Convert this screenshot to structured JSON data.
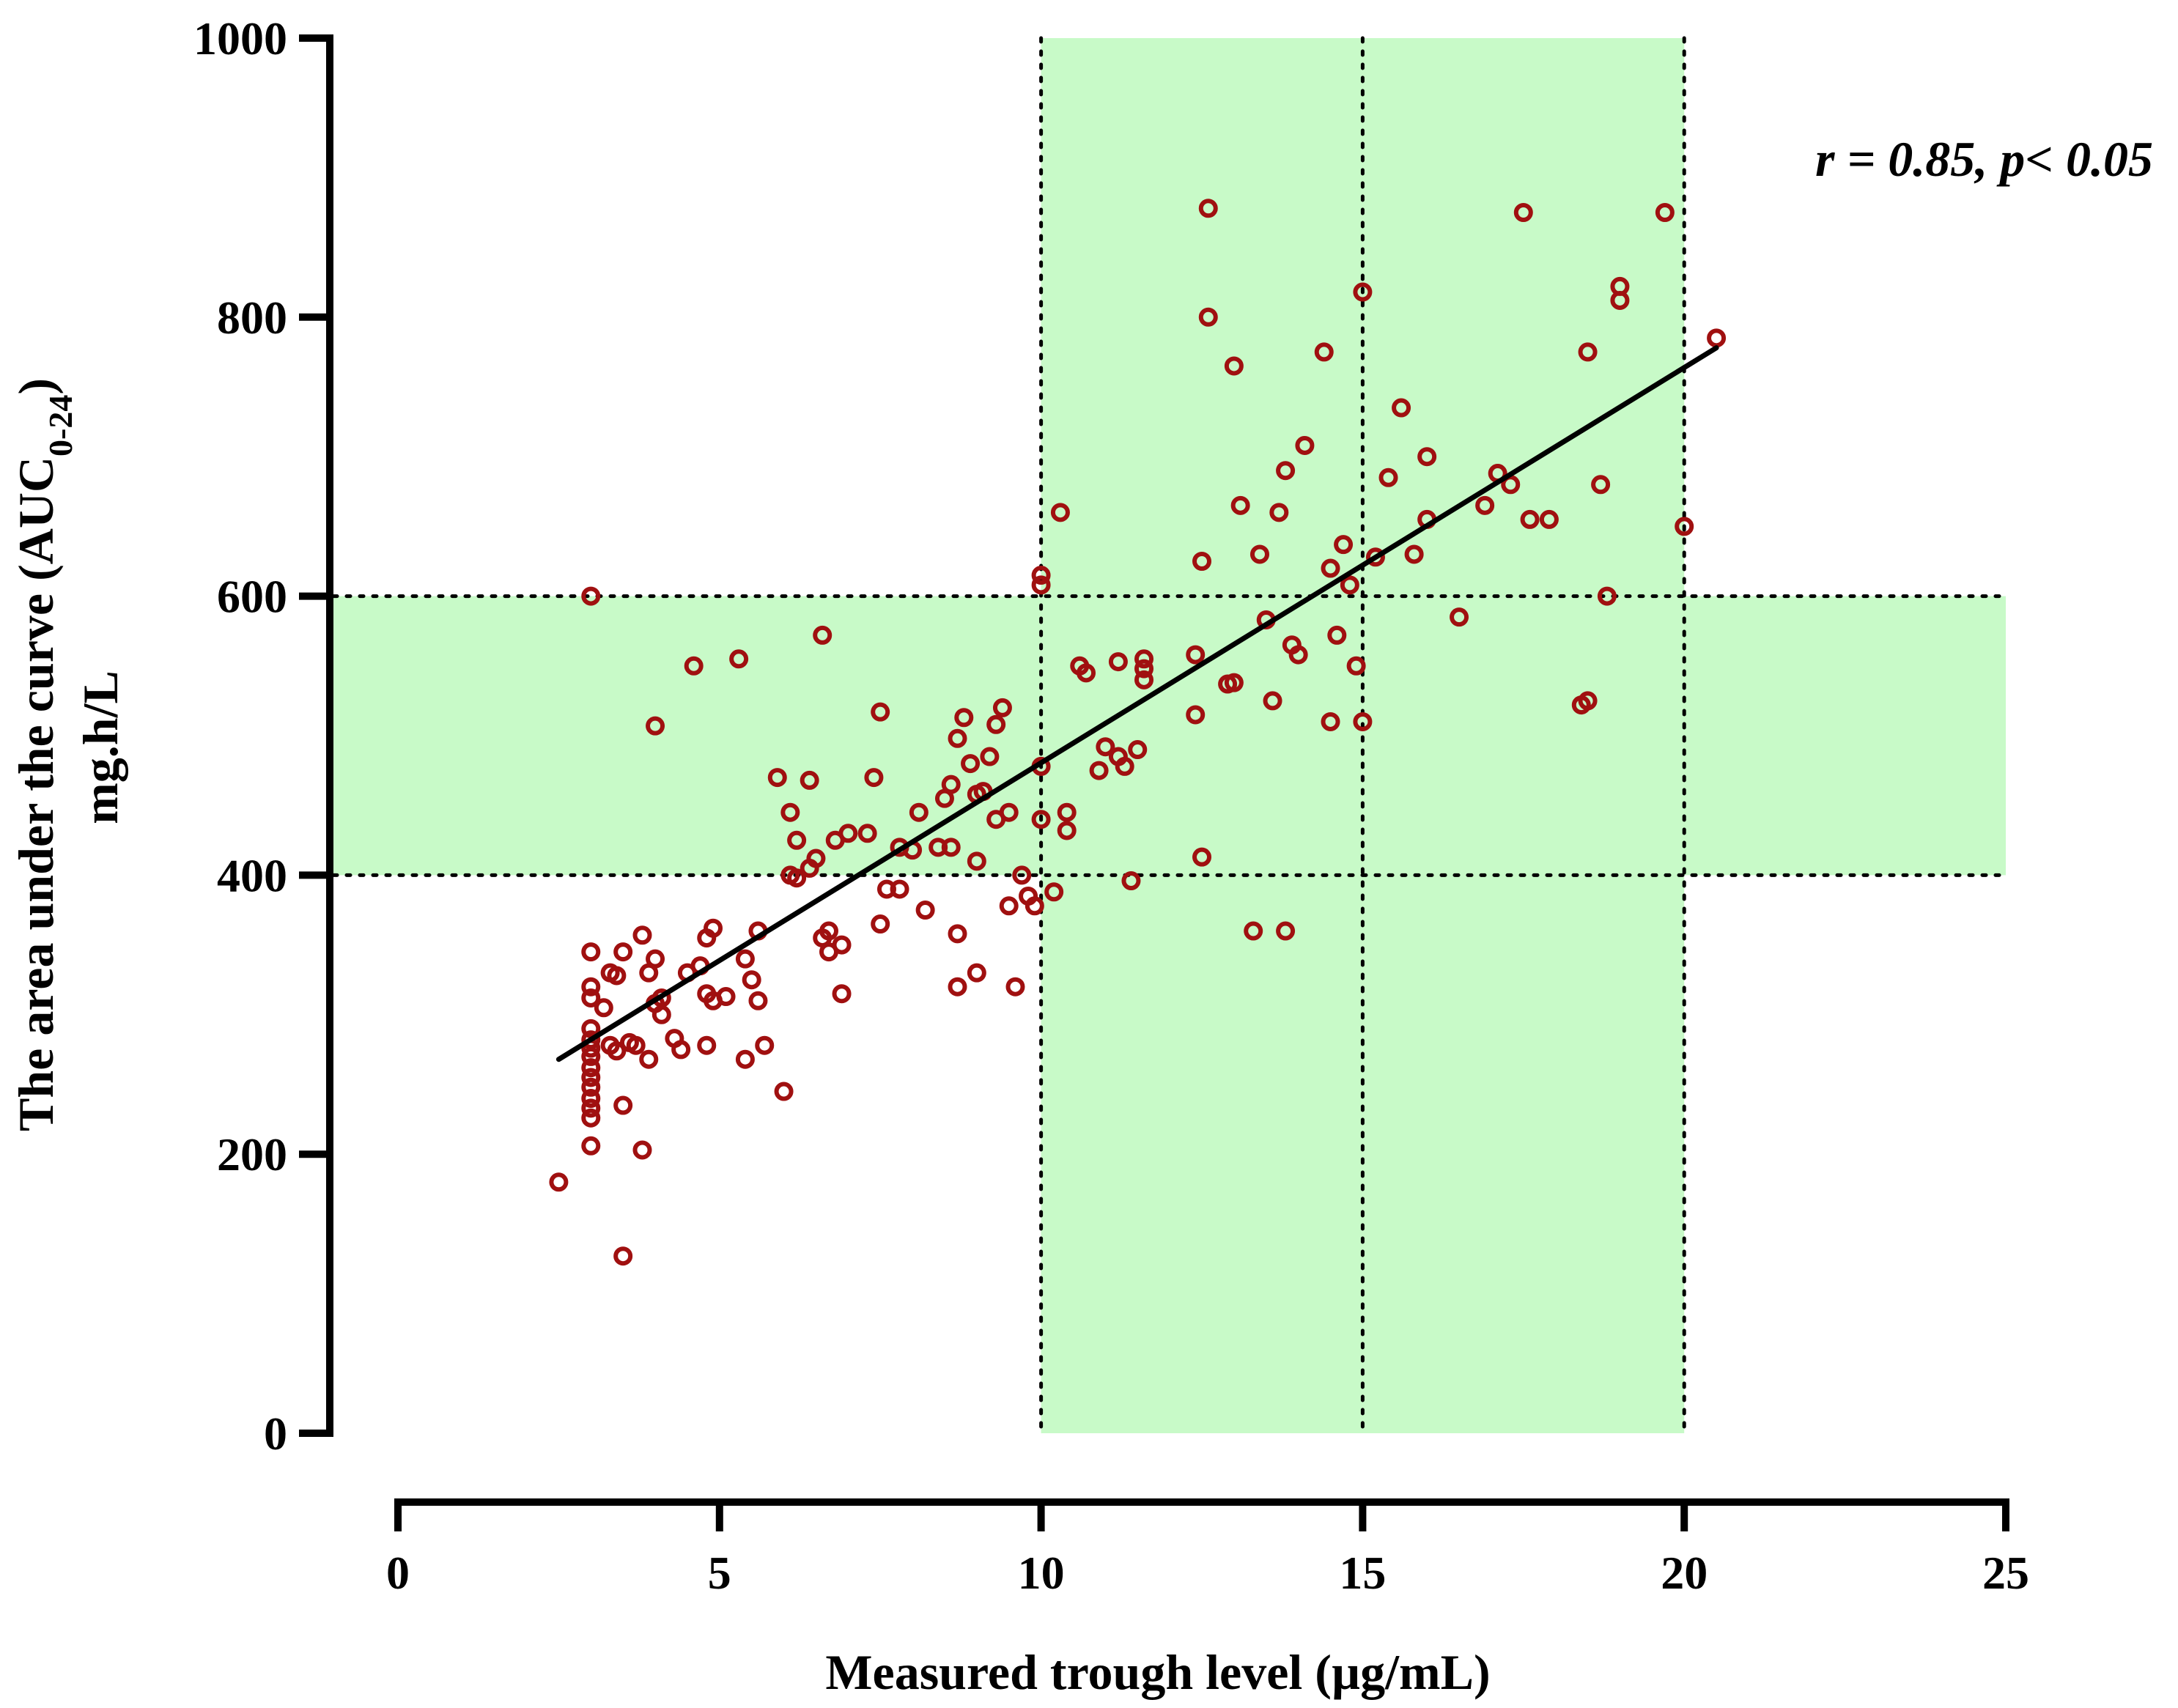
{
  "chart_data": {
    "type": "scatter",
    "title": "",
    "xlabel": "Measured trough level (µg/mL)",
    "ylabel_main": "The area under the curve (AUC",
    "ylabel_sub": "0-24",
    "ylabel_close": ")",
    "ylabel_line2": "mg.h/L",
    "xlim": [
      0,
      25
    ],
    "ylim": [
      0,
      1000
    ],
    "xticks": [
      "0",
      "5",
      "10",
      "15",
      "20",
      "25"
    ],
    "yticks": [
      "0",
      "200",
      "400",
      "600",
      "800",
      "1000"
    ],
    "annotation": "r = 0.85, p< 0.05",
    "target_bands": {
      "x_range": [
        10,
        20
      ],
      "x_mid": 15,
      "y_range": [
        400,
        600
      ]
    },
    "regression": {
      "x": [
        2.5,
        20.5
      ],
      "y": [
        268,
        778
      ]
    },
    "colors": {
      "points": "#a01010",
      "band": "#c8fac8",
      "line": "#000000"
    },
    "points": [
      [
        2.5,
        180
      ],
      [
        3.0,
        600
      ],
      [
        3.0,
        345
      ],
      [
        3.0,
        320
      ],
      [
        3.0,
        312
      ],
      [
        3.0,
        290
      ],
      [
        3.0,
        282
      ],
      [
        3.0,
        276
      ],
      [
        3.0,
        270
      ],
      [
        3.0,
        262
      ],
      [
        3.0,
        255
      ],
      [
        3.0,
        248
      ],
      [
        3.0,
        240
      ],
      [
        3.0,
        233
      ],
      [
        3.0,
        226
      ],
      [
        3.0,
        206
      ],
      [
        3.2,
        305
      ],
      [
        3.3,
        330
      ],
      [
        3.3,
        278
      ],
      [
        3.4,
        274
      ],
      [
        3.4,
        328
      ],
      [
        3.5,
        345
      ],
      [
        3.5,
        235
      ],
      [
        3.5,
        127
      ],
      [
        3.6,
        280
      ],
      [
        3.7,
        278
      ],
      [
        3.8,
        203
      ],
      [
        3.8,
        357
      ],
      [
        3.9,
        268
      ],
      [
        3.9,
        330
      ],
      [
        4.0,
        340
      ],
      [
        4.0,
        507
      ],
      [
        4.0,
        308
      ],
      [
        4.1,
        312
      ],
      [
        4.1,
        300
      ],
      [
        4.3,
        283
      ],
      [
        4.4,
        275
      ],
      [
        4.5,
        330
      ],
      [
        4.6,
        550
      ],
      [
        4.7,
        335
      ],
      [
        4.8,
        315
      ],
      [
        4.8,
        278
      ],
      [
        4.8,
        355
      ],
      [
        4.9,
        362
      ],
      [
        4.9,
        310
      ],
      [
        5.1,
        313
      ],
      [
        5.3,
        555
      ],
      [
        5.4,
        340
      ],
      [
        5.4,
        268
      ],
      [
        5.5,
        325
      ],
      [
        5.6,
        310
      ],
      [
        5.6,
        360
      ],
      [
        5.7,
        278
      ],
      [
        5.9,
        470
      ],
      [
        6.0,
        245
      ],
      [
        6.1,
        400
      ],
      [
        6.1,
        445
      ],
      [
        6.2,
        398
      ],
      [
        6.2,
        425
      ],
      [
        6.4,
        468
      ],
      [
        6.4,
        405
      ],
      [
        6.5,
        412
      ],
      [
        6.6,
        572
      ],
      [
        6.6,
        355
      ],
      [
        6.7,
        360
      ],
      [
        6.7,
        345
      ],
      [
        6.8,
        425
      ],
      [
        6.9,
        350
      ],
      [
        6.9,
        315
      ],
      [
        7.0,
        430
      ],
      [
        7.3,
        430
      ],
      [
        7.4,
        470
      ],
      [
        7.5,
        365
      ],
      [
        7.5,
        517
      ],
      [
        7.6,
        390
      ],
      [
        7.8,
        390
      ],
      [
        7.8,
        420
      ],
      [
        8.0,
        418
      ],
      [
        8.1,
        445
      ],
      [
        8.2,
        375
      ],
      [
        8.4,
        420
      ],
      [
        8.5,
        455
      ],
      [
        8.6,
        420
      ],
      [
        8.6,
        465
      ],
      [
        8.7,
        498
      ],
      [
        8.7,
        358
      ],
      [
        8.7,
        320
      ],
      [
        8.8,
        513
      ],
      [
        8.9,
        480
      ],
      [
        9.0,
        330
      ],
      [
        9.0,
        410
      ],
      [
        9.0,
        458
      ],
      [
        9.1,
        460
      ],
      [
        9.2,
        485
      ],
      [
        9.3,
        440
      ],
      [
        9.3,
        508
      ],
      [
        9.4,
        520
      ],
      [
        9.5,
        445
      ],
      [
        9.5,
        378
      ],
      [
        9.6,
        320
      ],
      [
        9.7,
        400
      ],
      [
        9.8,
        385
      ],
      [
        9.9,
        378
      ],
      [
        10.0,
        615
      ],
      [
        10.0,
        608
      ],
      [
        10.0,
        478
      ],
      [
        10.0,
        440
      ],
      [
        10.2,
        388
      ],
      [
        10.3,
        660
      ],
      [
        10.4,
        432
      ],
      [
        10.4,
        445
      ],
      [
        10.6,
        550
      ],
      [
        10.7,
        545
      ],
      [
        10.9,
        475
      ],
      [
        11.0,
        492
      ],
      [
        11.2,
        485
      ],
      [
        11.2,
        553
      ],
      [
        11.3,
        478
      ],
      [
        11.4,
        396
      ],
      [
        11.5,
        490
      ],
      [
        11.6,
        555
      ],
      [
        11.6,
        540
      ],
      [
        11.6,
        548
      ],
      [
        12.4,
        558
      ],
      [
        12.4,
        515
      ],
      [
        12.5,
        413
      ],
      [
        12.5,
        625
      ],
      [
        12.6,
        800
      ],
      [
        12.6,
        878
      ],
      [
        12.9,
        537
      ],
      [
        13.0,
        538
      ],
      [
        13.0,
        765
      ],
      [
        13.1,
        665
      ],
      [
        13.3,
        360
      ],
      [
        13.4,
        630
      ],
      [
        13.5,
        583
      ],
      [
        13.6,
        525
      ],
      [
        13.7,
        660
      ],
      [
        13.8,
        690
      ],
      [
        13.8,
        360
      ],
      [
        13.9,
        565
      ],
      [
        14.0,
        558
      ],
      [
        14.1,
        708
      ],
      [
        14.4,
        775
      ],
      [
        14.5,
        510
      ],
      [
        14.5,
        620
      ],
      [
        14.6,
        572
      ],
      [
        14.7,
        637
      ],
      [
        14.8,
        608
      ],
      [
        14.9,
        550
      ],
      [
        15.0,
        818
      ],
      [
        15.0,
        510
      ],
      [
        15.2,
        628
      ],
      [
        15.4,
        685
      ],
      [
        15.6,
        735
      ],
      [
        15.8,
        630
      ],
      [
        16.0,
        700
      ],
      [
        16.0,
        655
      ],
      [
        16.5,
        585
      ],
      [
        16.9,
        665
      ],
      [
        17.1,
        688
      ],
      [
        17.3,
        680
      ],
      [
        17.5,
        875
      ],
      [
        17.6,
        655
      ],
      [
        17.9,
        655
      ],
      [
        18.4,
        522
      ],
      [
        18.5,
        775
      ],
      [
        18.5,
        525
      ],
      [
        18.7,
        680
      ],
      [
        18.8,
        600
      ],
      [
        19.0,
        822
      ],
      [
        19.0,
        812
      ],
      [
        19.7,
        875
      ],
      [
        20.0,
        650
      ],
      [
        20.5,
        785
      ]
    ]
  }
}
